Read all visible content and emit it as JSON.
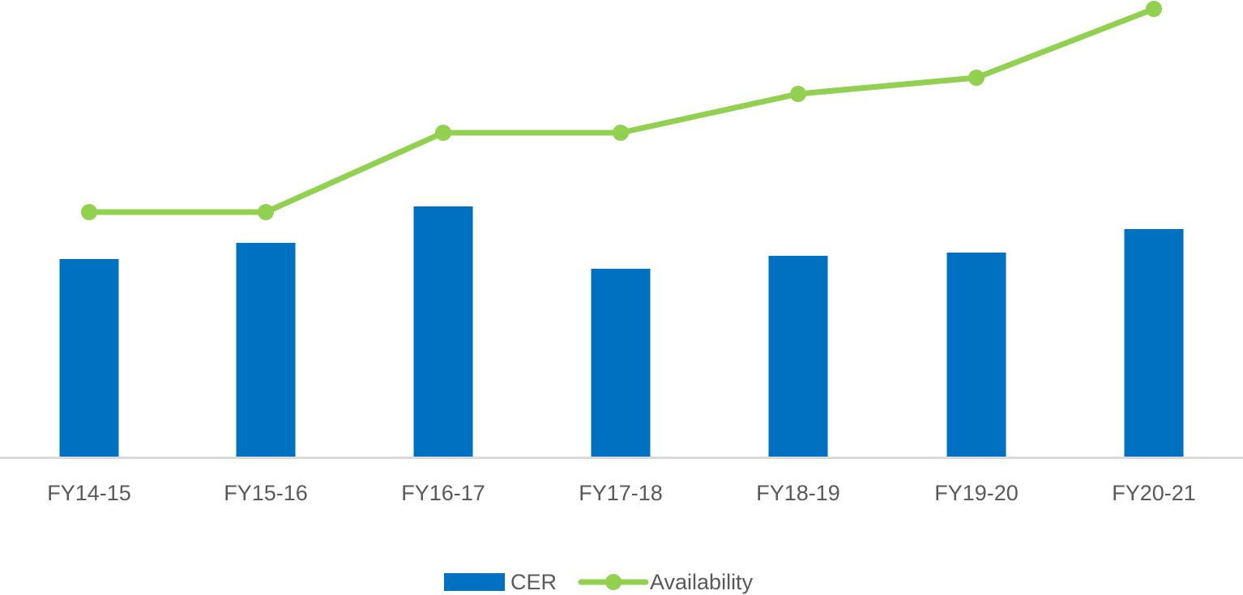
{
  "chart_data": {
    "type": "bar",
    "title": "",
    "xlabel": "",
    "ylabel": "",
    "grid": false,
    "legend_position": "bottom",
    "categories": [
      "FY14-15",
      "FY15-16",
      "FY16-17",
      "FY17-18",
      "FY18-19",
      "FY19-20",
      "FY20-21"
    ],
    "series": [
      {
        "name": "CER",
        "type": "bar",
        "color": "#0070C0",
        "values": [
          244,
          264,
          309,
          232,
          248,
          252,
          281
        ],
        "note": "relative bar heights in px (no y-axis shown)"
      },
      {
        "name": "Availability",
        "type": "line",
        "color": "#92D050",
        "marker": "circle",
        "values": [
          303,
          303,
          401,
          401,
          449,
          469,
          554
        ],
        "note": "relative height above baseline in px (no y-axis shown)"
      }
    ]
  },
  "legend": {
    "items": [
      {
        "label": "CER",
        "color": "#0070C0",
        "kind": "bar-swatch"
      },
      {
        "label": "Availability",
        "color": "#92D050",
        "kind": "line-marker"
      }
    ]
  },
  "colors": {
    "axis": "#D9D9D9",
    "text": "#595959"
  }
}
